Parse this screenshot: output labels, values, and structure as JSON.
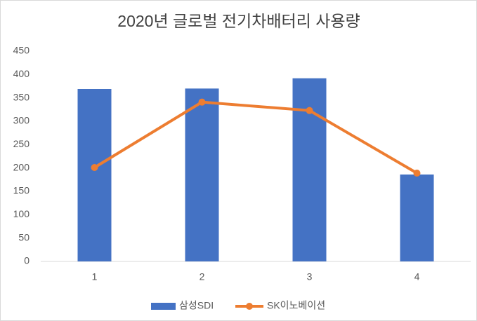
{
  "chart_data": {
    "type": "bar",
    "title": "2020년 글로벌 전기차배터리 사용량",
    "categories": [
      "1",
      "2",
      "3",
      "4"
    ],
    "series": [
      {
        "name": "삼성SDI",
        "type": "bar",
        "color": "#4472c4",
        "values": [
          369,
          370,
          392,
          186
        ]
      },
      {
        "name": "SK이노베이션",
        "type": "line",
        "color": "#ed7d31",
        "values": [
          201,
          341,
          323,
          189
        ]
      }
    ],
    "ylim": [
      0,
      450
    ],
    "yticks": [
      0,
      50,
      100,
      150,
      200,
      250,
      300,
      350,
      400,
      450
    ],
    "grid": false,
    "legend": "bottom"
  }
}
